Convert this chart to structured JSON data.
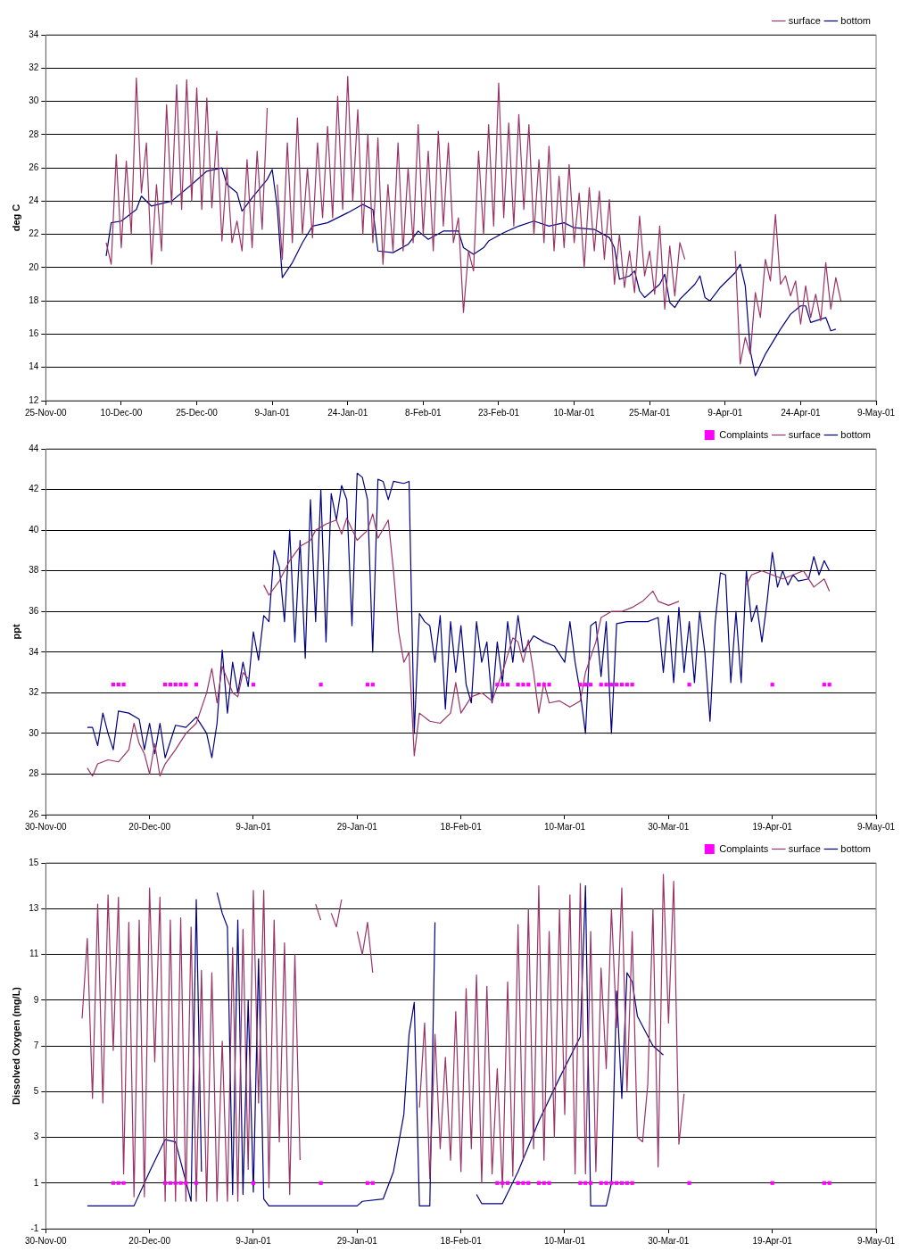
{
  "chart_data": [
    {
      "type": "line",
      "ylabel": "deg C",
      "ylim": [
        12,
        34
      ],
      "yticks": [
        12,
        14,
        16,
        18,
        20,
        22,
        24,
        26,
        28,
        30,
        32,
        34
      ],
      "xlim": [
        "2000-11-25",
        "2001-05-09"
      ],
      "xticks": [
        {
          "value": "2000-11-25",
          "label": "25-Nov-00"
        },
        {
          "value": "2000-12-10",
          "label": "10-Dec-00"
        },
        {
          "value": "2000-12-25",
          "label": "25-Dec-00"
        },
        {
          "value": "2001-01-09",
          "label": "9-Jan-01"
        },
        {
          "value": "2001-01-24",
          "label": "24-Jan-01"
        },
        {
          "value": "2001-02-08",
          "label": "8-Feb-01"
        },
        {
          "value": "2001-02-23",
          "label": "23-Feb-01"
        },
        {
          "value": "2001-03-10",
          "label": "10-Mar-01"
        },
        {
          "value": "2001-03-25",
          "label": "25-Mar-01"
        },
        {
          "value": "2001-04-09",
          "label": "9-Apr-01"
        },
        {
          "value": "2001-04-24",
          "label": "24-Apr-01"
        },
        {
          "value": "2001-05-09",
          "label": "9-May-01"
        }
      ],
      "grid": "y",
      "legend": "top right",
      "marker": "none",
      "series": [
        {
          "name": "surface",
          "color": "#993366",
          "x": [
            "2000-12-07",
            "2000-12-08",
            "2000-12-09",
            "2000-12-10",
            "2000-12-11",
            "2000-12-12",
            "2000-12-13",
            "2000-12-14",
            "2000-12-15",
            "2000-12-16",
            "2000-12-17",
            "2000-12-18",
            "2000-12-19",
            "2000-12-20",
            "2000-12-21",
            "2000-12-22",
            "2000-12-23",
            "2000-12-24",
            "2000-12-25",
            "2000-12-26",
            "2000-12-27",
            "2000-12-28",
            "2000-12-29",
            "2000-12-30",
            "2000-12-31",
            "2001-01-01",
            "2001-01-02",
            "2001-01-03",
            "2001-01-04",
            "2001-01-05",
            "2001-01-06",
            "2001-01-07",
            "2001-01-08",
            "2001-01-09",
            "2001-01-10",
            "2001-01-11",
            "2001-01-12",
            "2001-01-13",
            "2001-01-14",
            "2001-01-15",
            "2001-01-16",
            "2001-01-17",
            "2001-01-18",
            "2001-01-19",
            "2001-01-20",
            "2001-01-21",
            "2001-01-22",
            "2001-01-23",
            "2001-01-24",
            "2001-01-25",
            "2001-01-26",
            "2001-01-27",
            "2001-01-28",
            "2001-01-29",
            "2001-01-30",
            "2001-01-31",
            "2001-02-01",
            "2001-02-02",
            "2001-02-03",
            "2001-02-04",
            "2001-02-05",
            "2001-02-06",
            "2001-02-07",
            "2001-02-08",
            "2001-02-09",
            "2001-02-10",
            "2001-02-11",
            "2001-02-12",
            "2001-02-13",
            "2001-02-14",
            "2001-02-15",
            "2001-02-16",
            "2001-02-17",
            "2001-02-18",
            "2001-02-19",
            "2001-02-20",
            "2001-02-21",
            "2001-02-22",
            "2001-02-23",
            "2001-02-24",
            "2001-02-25",
            "2001-02-26",
            "2001-02-27",
            "2001-02-28",
            "2001-03-01",
            "2001-03-02",
            "2001-03-03",
            "2001-03-04",
            "2001-03-05",
            "2001-03-06",
            "2001-03-07",
            "2001-03-08",
            "2001-03-09",
            "2001-03-10",
            "2001-03-11",
            "2001-03-12",
            "2001-03-13",
            "2001-03-14",
            "2001-03-15",
            "2001-03-16",
            "2001-03-17",
            "2001-03-18",
            "2001-03-19",
            "2001-03-20",
            "2001-03-21",
            "2001-03-22",
            "2001-03-23",
            "2001-03-24",
            "2001-03-25",
            "2001-03-26",
            "2001-03-27",
            "2001-03-28",
            "2001-03-29",
            "2001-03-30",
            "2001-03-31",
            "2001-04-01",
            "2001-04-02",
            "2001-04-11",
            "2001-04-12",
            "2001-04-13",
            "2001-04-14",
            "2001-04-15",
            "2001-04-16",
            "2001-04-17",
            "2001-04-18",
            "2001-04-19",
            "2001-04-20",
            "2001-04-21",
            "2001-04-22",
            "2001-04-23",
            "2001-04-24",
            "2001-04-25",
            "2001-04-26",
            "2001-04-27",
            "2001-04-28",
            "2001-04-29",
            "2001-04-30",
            "2001-05-01",
            "2001-05-02"
          ],
          "values": [
            21.5,
            20.2,
            26.8,
            21.2,
            26.4,
            22,
            31.4,
            24.5,
            27.5,
            20.2,
            25,
            21,
            29.8,
            23.8,
            31,
            23.5,
            31.3,
            24,
            30.8,
            23.5,
            30.2,
            23.6,
            28.2,
            21.6,
            26,
            21.5,
            22.8,
            21,
            26.5,
            21.2,
            27,
            22.3,
            29.6,
            null,
            25,
            20.5,
            27.5,
            21.5,
            29,
            22,
            26,
            21.8,
            27.5,
            23,
            28.5,
            23,
            30.3,
            23.5,
            31.5,
            24,
            29.5,
            22,
            28,
            21.5,
            27.8,
            20.2,
            25,
            21,
            27.5,
            21,
            26,
            21.5,
            28.6,
            22,
            27,
            21,
            28.2,
            22.5,
            27.5,
            21.5,
            23,
            17.3,
            21,
            19.8,
            27,
            22,
            28.6,
            22.5,
            31.1,
            23,
            28.7,
            22.5,
            29.2,
            23.5,
            28.6,
            22,
            26.5,
            21.5,
            27.3,
            21,
            25.5,
            21.2,
            26.2,
            21.5,
            24.5,
            20,
            24.8,
            21,
            24.6,
            20.5,
            24.1,
            19,
            22,
            18.8,
            21,
            18.5,
            23.1,
            19.5,
            21,
            18.4,
            22.5,
            17.5,
            21.3,
            18.3,
            21.5,
            20.5,
            null,
            21,
            14.2,
            15.8,
            14.8,
            18.5,
            17,
            20.5,
            19.2,
            23.2,
            19,
            19.5,
            18.3,
            19.2,
            16.6,
            18.9,
            17,
            18.4,
            16.8,
            20.3,
            17.5,
            19.4,
            18
          ]
        },
        {
          "name": "bottom",
          "color": "#000080",
          "x": [
            "2000-12-07",
            "2000-12-08",
            "2000-12-10",
            "2000-12-13",
            "2000-12-14",
            "2000-12-16",
            "2000-12-20",
            "2000-12-24",
            "2000-12-27",
            "2000-12-30",
            "2000-12-31",
            "2001-01-02",
            "2001-01-03",
            "2001-01-05",
            "2001-01-08",
            "2001-01-09",
            "2001-01-10",
            "2001-01-11",
            "2001-01-13",
            "2001-01-15",
            "2001-01-17",
            "2001-01-20",
            "2001-01-24",
            "2001-01-27",
            "2001-01-29",
            "2001-01-30",
            "2001-02-02",
            "2001-02-05",
            "2001-02-07",
            "2001-02-09",
            "2001-02-12",
            "2001-02-15",
            "2001-02-16",
            "2001-02-18",
            "2001-02-20",
            "2001-02-21",
            "2001-02-24",
            "2001-02-27",
            "2001-03-02",
            "2001-03-05",
            "2001-03-08",
            "2001-03-10",
            "2001-03-14",
            "2001-03-17",
            "2001-03-18",
            "2001-03-19",
            "2001-03-21",
            "2001-03-22",
            "2001-03-23",
            "2001-03-24",
            "2001-03-27",
            "2001-03-28",
            "2001-03-29",
            "2001-03-30",
            "2001-03-31",
            "2001-04-03",
            "2001-04-04",
            "2001-04-05",
            "2001-04-06",
            "2001-04-08",
            "2001-04-11",
            "2001-04-12",
            "2001-04-13",
            "2001-04-14",
            "2001-04-15",
            "2001-04-17",
            "2001-04-20",
            "2001-04-22",
            "2001-04-24",
            "2001-04-25",
            "2001-04-26",
            "2001-04-29",
            "2001-04-30",
            "2001-05-01"
          ],
          "values": [
            20.7,
            22.7,
            22.8,
            23.5,
            24.3,
            23.7,
            24,
            25,
            25.8,
            26,
            25,
            24.5,
            23.4,
            24.2,
            25.3,
            25.9,
            23.6,
            19.4,
            20.3,
            21.5,
            22.5,
            22.7,
            23.3,
            23.8,
            23.5,
            21,
            20.9,
            21.4,
            22.2,
            21.7,
            22.2,
            22.2,
            21.2,
            20.8,
            21.2,
            21.6,
            22.1,
            22.5,
            22.8,
            22.5,
            22.7,
            22.4,
            22.3,
            21.8,
            21.2,
            19.3,
            19.5,
            19.8,
            18.6,
            18.2,
            19,
            19.6,
            17.9,
            17.6,
            18.1,
            19,
            19.5,
            18.2,
            18,
            18.8,
            19.7,
            20.2,
            18.9,
            15,
            13.5,
            14.8,
            16.3,
            17.2,
            17.7,
            17.7,
            16.7,
            17,
            16.2,
            16.3
          ]
        }
      ]
    },
    {
      "type": "line",
      "ylabel": "ppt",
      "ylim": [
        26,
        44
      ],
      "yticks": [
        26,
        28,
        30,
        32,
        34,
        36,
        38,
        40,
        42,
        44
      ],
      "xlim": [
        "2000-11-30",
        "2001-05-09"
      ],
      "xticks": [
        {
          "value": "2000-11-30",
          "label": "30-Nov-00"
        },
        {
          "value": "2000-12-20",
          "label": "20-Dec-00"
        },
        {
          "value": "2001-01-09",
          "label": "9-Jan-01"
        },
        {
          "value": "2001-01-29",
          "label": "29-Jan-01"
        },
        {
          "value": "2001-02-18",
          "label": "18-Feb-01"
        },
        {
          "value": "2001-03-10",
          "label": "10-Mar-01"
        },
        {
          "value": "2001-03-30",
          "label": "30-Mar-01"
        },
        {
          "value": "2001-04-19",
          "label": "19-Apr-01"
        },
        {
          "value": "2001-05-09",
          "label": "9-May-01"
        }
      ],
      "grid": "y",
      "legend": "top right",
      "marker": "none",
      "series": [
        {
          "name": "surface",
          "color": "#993366",
          "x": [
            "2000-12-08",
            "2000-12-09",
            "2000-12-10",
            "2000-12-12",
            "2000-12-14",
            "2000-12-16",
            "2000-12-17",
            "2000-12-18",
            "2000-12-19",
            "2000-12-20",
            "2000-12-21",
            "2000-12-22",
            "2000-12-23",
            "2000-12-25",
            "2000-12-27",
            "2000-12-29",
            "2000-12-31",
            "2001-01-01",
            "2001-01-02",
            "2001-01-03",
            "2001-01-05",
            "2001-01-06",
            "2001-01-07",
            "2001-01-08",
            "2001-01-09",
            "2001-01-11",
            "2001-01-12",
            "2001-01-14",
            "2001-01-16",
            "2001-01-18",
            "2001-01-20",
            "2001-01-21",
            "2001-01-23",
            "2001-01-25",
            "2001-01-26",
            "2001-01-27",
            "2001-01-29",
            "2001-01-31",
            "2001-02-01",
            "2001-02-02",
            "2001-02-04",
            "2001-02-05",
            "2001-02-06",
            "2001-02-07",
            "2001-02-08",
            "2001-02-09",
            "2001-02-10",
            "2001-02-12",
            "2001-02-14",
            "2001-02-16",
            "2001-02-17",
            "2001-02-18",
            "2001-02-20",
            "2001-02-22",
            "2001-02-24",
            "2001-02-26",
            "2001-02-28",
            "2001-03-01",
            "2001-03-02",
            "2001-03-03",
            "2001-03-04",
            "2001-03-05",
            "2001-03-06",
            "2001-03-07",
            "2001-03-09",
            "2001-03-11",
            "2001-03-13",
            "2001-03-14",
            "2001-03-16",
            "2001-03-17",
            "2001-03-19",
            "2001-03-21",
            "2001-03-23",
            "2001-03-25",
            "2001-03-27",
            "2001-03-28",
            "2001-03-30",
            "2001-04-01",
            "2001-04-02",
            "2001-04-14",
            "2001-04-15",
            "2001-04-17",
            "2001-04-19",
            "2001-04-21",
            "2001-04-23",
            "2001-04-25",
            "2001-04-27",
            "2001-04-29",
            "2001-04-30"
          ],
          "values": [
            28.3,
            27.9,
            28.5,
            28.7,
            28.6,
            29.2,
            30.5,
            29.5,
            29,
            28,
            29.5,
            27.9,
            28.5,
            29.2,
            30,
            30.5,
            32,
            33.2,
            31.5,
            33.3,
            32,
            31.8,
            33,
            32.7,
            null,
            37.3,
            36.8,
            37.5,
            38.5,
            39.2,
            39.5,
            40,
            40.3,
            40.5,
            39.8,
            40.6,
            39.5,
            40,
            40.8,
            39.6,
            40.5,
            38,
            35,
            33.5,
            34,
            28.9,
            31,
            30.6,
            30.5,
            31,
            32.5,
            31,
            31.8,
            32,
            31.6,
            33,
            34.7,
            34.5,
            33.5,
            34.6,
            33,
            31,
            32.5,
            31.5,
            31.6,
            31.3,
            31.6,
            33,
            34.5,
            35.7,
            36,
            36,
            36.2,
            36.5,
            37,
            36.5,
            36.3,
            36.5,
            null,
            37.3,
            37.8,
            38,
            37.8,
            37.6,
            37.8,
            38,
            37.2,
            37.6,
            37
          ]
        },
        {
          "name": "bottom",
          "color": "#000080",
          "x": [
            "2000-12-08",
            "2000-12-09",
            "2000-12-10",
            "2000-12-11",
            "2000-12-12",
            "2000-12-13",
            "2000-12-14",
            "2000-12-16",
            "2000-12-18",
            "2000-12-19",
            "2000-12-20",
            "2000-12-21",
            "2000-12-22",
            "2000-12-23",
            "2000-12-25",
            "2000-12-27",
            "2000-12-29",
            "2000-12-31",
            "2001-01-01",
            "2001-01-02",
            "2001-01-03",
            "2001-01-04",
            "2001-01-05",
            "2001-01-06",
            "2001-01-07",
            "2001-01-08",
            "2001-01-09",
            "2001-01-10",
            "2001-01-11",
            "2001-01-12",
            "2001-01-13",
            "2001-01-14",
            "2001-01-15",
            "2001-01-16",
            "2001-01-17",
            "2001-01-18",
            "2001-01-19",
            "2001-01-20",
            "2001-01-21",
            "2001-01-22",
            "2001-01-23",
            "2001-01-24",
            "2001-01-25",
            "2001-01-26",
            "2001-01-27",
            "2001-01-28",
            "2001-01-29",
            "2001-01-30",
            "2001-01-31",
            "2001-02-01",
            "2001-02-02",
            "2001-02-03",
            "2001-02-04",
            "2001-02-05",
            "2001-02-07",
            "2001-02-08",
            "2001-02-09",
            "2001-02-10",
            "2001-02-11",
            "2001-02-12",
            "2001-02-13",
            "2001-02-14",
            "2001-02-15",
            "2001-02-16",
            "2001-02-17",
            "2001-02-18",
            "2001-02-19",
            "2001-02-20",
            "2001-02-21",
            "2001-02-22",
            "2001-02-23",
            "2001-02-24",
            "2001-02-25",
            "2001-02-26",
            "2001-02-27",
            "2001-02-28",
            "2001-03-01",
            "2001-03-02",
            "2001-03-04",
            "2001-03-06",
            "2001-03-08",
            "2001-03-10",
            "2001-03-11",
            "2001-03-12",
            "2001-03-13",
            "2001-03-14",
            "2001-03-15",
            "2001-03-16",
            "2001-03-17",
            "2001-03-18",
            "2001-03-19",
            "2001-03-20",
            "2001-03-22",
            "2001-03-24",
            "2001-03-26",
            "2001-03-28",
            "2001-03-29",
            "2001-03-30",
            "2001-03-31",
            "2001-04-01",
            "2001-04-02",
            "2001-04-03",
            "2001-04-04",
            "2001-04-05",
            "2001-04-06",
            "2001-04-07",
            "2001-04-08",
            "2001-04-09",
            "2001-04-10",
            "2001-04-11",
            "2001-04-12",
            "2001-04-13",
            "2001-04-14",
            "2001-04-15",
            "2001-04-16",
            "2001-04-17",
            "2001-04-18",
            "2001-04-19",
            "2001-04-20",
            "2001-04-21",
            "2001-04-22",
            "2001-04-23",
            "2001-04-24",
            "2001-04-26",
            "2001-04-27",
            "2001-04-28",
            "2001-04-29",
            "2001-04-30"
          ],
          "values": [
            30.3,
            30.3,
            29.4,
            31,
            30,
            29.2,
            31.1,
            31,
            30.7,
            29.2,
            30.5,
            29,
            30.5,
            28.8,
            30.4,
            30.3,
            30.8,
            30,
            28.8,
            30.5,
            34.1,
            31,
            33.5,
            32,
            33.5,
            32.3,
            35,
            33.6,
            35.8,
            35.5,
            39,
            38.2,
            35.5,
            40,
            34.5,
            39.5,
            33.7,
            41.5,
            35.5,
            42,
            34.5,
            41.8,
            40.5,
            42.2,
            41.5,
            35.3,
            42.8,
            42.6,
            41.5,
            34,
            42.5,
            42.4,
            41.5,
            42.4,
            42.3,
            42.4,
            30,
            35.9,
            35.5,
            35.3,
            33.5,
            35.8,
            31.2,
            35.5,
            33,
            35.3,
            32.4,
            31.5,
            35.5,
            33.5,
            34.5,
            31.5,
            34.5,
            32.5,
            35.5,
            33.5,
            35.8,
            34,
            34.8,
            34.5,
            34.3,
            33.5,
            35.5,
            33.5,
            32,
            30,
            35.3,
            35.5,
            32.8,
            35.5,
            30,
            35.4,
            35.5,
            35.5,
            35.5,
            35.7,
            33,
            35.8,
            32.5,
            36.2,
            33,
            35.5,
            32.5,
            36,
            34,
            30.6,
            35.5,
            37.9,
            37.8,
            32.5,
            36,
            32.5,
            38,
            35.5,
            36.3,
            34.5,
            36.5,
            38.9,
            37.2,
            38,
            37.3,
            37.8,
            37.5,
            37.6,
            38.7,
            37.8,
            38.5,
            38
          ]
        },
        {
          "name": "Complaints",
          "type": "scatter",
          "marker": "square",
          "color": "#ff00ff",
          "x": [
            "2000-12-13",
            "2000-12-14",
            "2000-12-15",
            "2000-12-23",
            "2000-12-24",
            "2000-12-25",
            "2000-12-26",
            "2000-12-27",
            "2000-12-29",
            "2001-01-09",
            "2001-01-22",
            "2001-01-31",
            "2001-02-01",
            "2001-02-25",
            "2001-02-26",
            "2001-02-27",
            "2001-03-01",
            "2001-03-02",
            "2001-03-03",
            "2001-03-05",
            "2001-03-06",
            "2001-03-07",
            "2001-03-13",
            "2001-03-14",
            "2001-03-15",
            "2001-03-17",
            "2001-03-18",
            "2001-03-19",
            "2001-03-20",
            "2001-03-21",
            "2001-03-22",
            "2001-03-23",
            "2001-04-03",
            "2001-04-19",
            "2001-04-29",
            "2001-04-30"
          ],
          "values": [
            32.4,
            32.4,
            32.4,
            32.4,
            32.4,
            32.4,
            32.4,
            32.4,
            32.4,
            32.4,
            32.4,
            32.4,
            32.4,
            32.4,
            32.4,
            32.4,
            32.4,
            32.4,
            32.4,
            32.4,
            32.4,
            32.4,
            32.4,
            32.4,
            32.4,
            32.4,
            32.4,
            32.4,
            32.4,
            32.4,
            32.4,
            32.4,
            32.4,
            32.4,
            32.4,
            32.4
          ]
        }
      ]
    },
    {
      "type": "line",
      "ylabel": "Dissolved Oxygen (mg/L)",
      "ylim": [
        -1,
        15
      ],
      "yticks": [
        -1,
        1,
        3,
        5,
        7,
        9,
        11,
        13,
        15
      ],
      "xlim": [
        "2000-11-30",
        "2001-05-09"
      ],
      "xticks": [
        {
          "value": "2000-11-30",
          "label": "30-Nov-00"
        },
        {
          "value": "2000-12-20",
          "label": "20-Dec-00"
        },
        {
          "value": "2001-01-09",
          "label": "9-Jan-01"
        },
        {
          "value": "2001-01-29",
          "label": "29-Jan-01"
        },
        {
          "value": "2001-02-18",
          "label": "18-Feb-01"
        },
        {
          "value": "2001-03-10",
          "label": "10-Mar-01"
        },
        {
          "value": "2001-03-30",
          "label": "30-Mar-01"
        },
        {
          "value": "2001-04-19",
          "label": "19-Apr-01"
        },
        {
          "value": "2001-05-09",
          "label": "9-May-01"
        }
      ],
      "grid": "y",
      "legend": "top right",
      "marker": "none",
      "series": [
        {
          "name": "surface",
          "color": "#993366",
          "x": [
            "2000-12-07",
            "2000-12-08",
            "2000-12-09",
            "2000-12-10",
            "2000-12-11",
            "2000-12-12",
            "2000-12-13",
            "2000-12-14",
            "2000-12-15",
            "2000-12-16",
            "2000-12-17",
            "2000-12-18",
            "2000-12-19",
            "2000-12-20",
            "2000-12-21",
            "2000-12-22",
            "2000-12-23",
            "2000-12-24",
            "2000-12-25",
            "2000-12-26",
            "2000-12-27",
            "2000-12-28",
            "2000-12-29",
            "2000-12-30",
            "2000-12-31",
            "2001-01-01",
            "2001-01-02",
            "2001-01-03",
            "2001-01-04",
            "2001-01-05",
            "2001-01-06",
            "2001-01-07",
            "2001-01-08",
            "2001-01-09",
            "2001-01-10",
            "2001-01-11",
            "2001-01-12",
            "2001-01-13",
            "2001-01-14",
            "2001-01-15",
            "2001-01-16",
            "2001-01-17",
            "2001-01-18",
            "2001-01-19",
            "2001-01-21",
            "2001-01-22",
            "2001-01-23",
            "2001-01-24",
            "2001-01-25",
            "2001-01-26",
            "2001-01-27",
            "2001-01-29",
            "2001-01-30",
            "2001-01-31",
            "2001-02-01",
            "2001-02-02",
            "2001-02-10",
            "2001-02-11",
            "2001-02-12",
            "2001-02-13",
            "2001-02-14",
            "2001-02-15",
            "2001-02-16",
            "2001-02-17",
            "2001-02-18",
            "2001-02-19",
            "2001-02-20",
            "2001-02-21",
            "2001-02-22",
            "2001-02-23",
            "2001-02-24",
            "2001-02-25",
            "2001-02-26",
            "2001-02-27",
            "2001-02-28",
            "2001-03-01",
            "2001-03-02",
            "2001-03-03",
            "2001-03-04",
            "2001-03-05",
            "2001-03-06",
            "2001-03-07",
            "2001-03-08",
            "2001-03-09",
            "2001-03-10",
            "2001-03-11",
            "2001-03-12",
            "2001-03-13",
            "2001-03-14",
            "2001-03-15",
            "2001-03-16",
            "2001-03-17",
            "2001-03-18",
            "2001-03-19",
            "2001-03-20",
            "2001-03-21",
            "2001-03-22",
            "2001-03-23",
            "2001-03-24",
            "2001-03-25",
            "2001-03-26",
            "2001-03-27",
            "2001-03-28",
            "2001-03-29",
            "2001-03-30",
            "2001-03-31",
            "2001-04-01",
            "2001-04-02"
          ],
          "values": [
            8.2,
            11.7,
            4.7,
            13.2,
            4.5,
            13.6,
            6.8,
            13.5,
            1.4,
            12.4,
            0.4,
            12.5,
            0.4,
            13.9,
            6.3,
            13.5,
            0.2,
            12.5,
            0.2,
            12.6,
            0.2,
            12.2,
            0.2,
            10.3,
            0.2,
            10.2,
            0.2,
            7.2,
            0.2,
            11.3,
            0.2,
            12.1,
            1.6,
            13.8,
            4.5,
            13.8,
            0.8,
            12.5,
            2.8,
            11.5,
            0.5,
            11,
            2,
            null,
            13.2,
            12.5,
            null,
            12.8,
            12.2,
            13.4,
            null,
            12,
            11,
            12.4,
            10.2,
            null,
            4.3,
            8,
            1.2,
            7.5,
            2.5,
            6.5,
            2,
            8.5,
            1.5,
            9.5,
            2.5,
            10.1,
            1,
            9.6,
            1.4,
            6,
            0.8,
            9.8,
            1.3,
            12.3,
            2,
            13,
            2.5,
            14,
            2,
            12,
            3,
            13,
            4,
            13.6,
            1.4,
            14.1,
            1.4,
            12,
            1.5,
            10.4,
            6,
            13,
            7.8,
            13.9,
            5,
            12,
            3,
            2.8,
            5.3,
            13,
            1.7,
            14.5,
            8,
            14.2,
            2.7,
            4.9
          ]
        },
        {
          "name": "bottom",
          "color": "#000080",
          "x": [
            "2000-12-08",
            "2000-12-17",
            "2000-12-20",
            "2000-12-23",
            "2000-12-25",
            "2000-12-28",
            "2000-12-29",
            "2000-12-30",
            "2000-12-31",
            "2001-01-02",
            "2001-01-03",
            "2001-01-04",
            "2001-01-05",
            "2001-01-06",
            "2001-01-07",
            "2001-01-08",
            "2001-01-09",
            "2001-01-10",
            "2001-01-11",
            "2001-01-12",
            "2001-01-29",
            "2001-01-30",
            "2001-02-03",
            "2001-02-05",
            "2001-02-07",
            "2001-02-08",
            "2001-02-09",
            "2001-02-10",
            "2001-02-12",
            "2001-02-13",
            "2001-02-14",
            "2001-02-21",
            "2001-02-22",
            "2001-02-26",
            "2001-03-01",
            "2001-03-05",
            "2001-03-09",
            "2001-03-13",
            "2001-03-14",
            "2001-03-15",
            "2001-03-18",
            "2001-03-19",
            "2001-03-20",
            "2001-03-21",
            "2001-03-22",
            "2001-03-23",
            "2001-03-24",
            "2001-03-27",
            "2001-03-29"
          ],
          "values": [
            0,
            0,
            1.5,
            2.9,
            2.8,
            0.2,
            13.4,
            1.5,
            null,
            13.7,
            12.8,
            12.2,
            0.5,
            12.5,
            0.5,
            9,
            0.6,
            10.8,
            0.3,
            0,
            0,
            0.2,
            0.3,
            1.5,
            4,
            7.5,
            8.9,
            0,
            0,
            12.4,
            null,
            0.5,
            0.1,
            0.1,
            1.5,
            3.7,
            5.6,
            7.4,
            14,
            0,
            0,
            1,
            9.4,
            4.7,
            10.2,
            9.8,
            8.3,
            7,
            6.6
          ]
        },
        {
          "name": "Complaints",
          "type": "scatter",
          "marker": "square",
          "color": "#ff00ff",
          "x": [
            "2000-12-13",
            "2000-12-14",
            "2000-12-15",
            "2000-12-23",
            "2000-12-24",
            "2000-12-25",
            "2000-12-26",
            "2000-12-27",
            "2000-12-29",
            "2001-01-09",
            "2001-01-22",
            "2001-01-31",
            "2001-02-01",
            "2001-02-25",
            "2001-02-26",
            "2001-02-27",
            "2001-03-01",
            "2001-03-02",
            "2001-03-03",
            "2001-03-05",
            "2001-03-06",
            "2001-03-07",
            "2001-03-13",
            "2001-03-14",
            "2001-03-15",
            "2001-03-17",
            "2001-03-18",
            "2001-03-19",
            "2001-03-20",
            "2001-03-21",
            "2001-03-22",
            "2001-03-23",
            "2001-04-03",
            "2001-04-19",
            "2001-04-29",
            "2001-04-30"
          ],
          "values": [
            1,
            1,
            1,
            1,
            1,
            1,
            1,
            1,
            1,
            1,
            1,
            1,
            1,
            1,
            1,
            1,
            1,
            1,
            1,
            1,
            1,
            1,
            1,
            1,
            1,
            1,
            1,
            1,
            1,
            1,
            1,
            1,
            1,
            1,
            1,
            1
          ]
        }
      ]
    }
  ]
}
